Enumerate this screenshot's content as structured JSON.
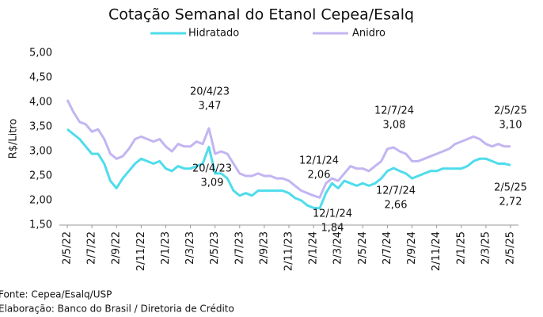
{
  "chart_data": {
    "type": "line",
    "title": "Cotação Semanal do Etanol Cepea/Esalq",
    "y_label": "R$/Litro",
    "categories": [
      "2/5/22",
      null,
      null,
      null,
      "2/7/22",
      null,
      null,
      null,
      "2/9/22",
      null,
      null,
      null,
      "2/11/22",
      null,
      null,
      null,
      "2/1/23",
      null,
      null,
      null,
      "2/3/23",
      null,
      null,
      null,
      "2/5/23",
      null,
      null,
      null,
      "2/7/23",
      null,
      null,
      null,
      "2/9/23",
      null,
      null,
      null,
      "2/11/23",
      null,
      null,
      null,
      "2/1/24",
      null,
      null,
      null,
      "2/3/24",
      null,
      null,
      null,
      "2/5/24",
      null,
      null,
      null,
      "2/7/24",
      null,
      null,
      null,
      "2/9/24",
      null,
      null,
      null,
      "2/11/24",
      null,
      null,
      null,
      "2/1/25",
      null,
      null,
      null,
      "2/3/25",
      null,
      null,
      null,
      "2/5/25"
    ],
    "series": [
      {
        "name": "Hidratado",
        "color": "#4fdcec",
        "values": [
          3.45,
          3.35,
          3.25,
          3.1,
          2.95,
          2.95,
          2.75,
          2.4,
          2.25,
          2.45,
          2.6,
          2.75,
          2.85,
          2.8,
          2.75,
          2.8,
          2.65,
          2.6,
          2.7,
          2.65,
          2.65,
          2.7,
          2.75,
          3.09,
          2.55,
          2.55,
          2.45,
          2.2,
          2.1,
          2.15,
          2.1,
          2.2,
          2.2,
          2.2,
          2.2,
          2.2,
          2.15,
          2.05,
          2.0,
          1.9,
          1.85,
          1.84,
          2.15,
          2.35,
          2.25,
          2.4,
          2.35,
          2.3,
          2.35,
          2.3,
          2.35,
          2.45,
          2.6,
          2.66,
          2.6,
          2.55,
          2.45,
          2.5,
          2.55,
          2.6,
          2.6,
          2.65,
          2.65,
          2.65,
          2.65,
          2.7,
          2.8,
          2.85,
          2.85,
          2.8,
          2.75,
          2.75,
          2.72
        ]
      },
      {
        "name": "Anidro",
        "color": "#c3b5f2",
        "values": [
          4.05,
          3.8,
          3.6,
          3.55,
          3.4,
          3.45,
          3.25,
          2.95,
          2.85,
          2.9,
          3.05,
          3.25,
          3.3,
          3.25,
          3.2,
          3.25,
          3.1,
          3.0,
          3.15,
          3.1,
          3.1,
          3.2,
          3.15,
          3.47,
          2.95,
          3.0,
          2.95,
          2.75,
          2.55,
          2.5,
          2.5,
          2.55,
          2.5,
          2.5,
          2.45,
          2.45,
          2.4,
          2.3,
          2.2,
          2.15,
          2.1,
          2.06,
          2.35,
          2.45,
          2.4,
          2.55,
          2.7,
          2.65,
          2.65,
          2.6,
          2.7,
          2.8,
          3.05,
          3.08,
          3.0,
          2.95,
          2.8,
          2.8,
          2.85,
          2.9,
          2.95,
          3.0,
          3.05,
          3.15,
          3.2,
          3.25,
          3.3,
          3.25,
          3.15,
          3.1,
          3.15,
          3.1,
          3.1
        ]
      }
    ],
    "ylim": [
      1.5,
      5.0
    ],
    "yticks": [
      {
        "value": 1.5,
        "label": "1,50"
      },
      {
        "value": 2.0,
        "label": "2,00"
      },
      {
        "value": 2.5,
        "label": "2,50"
      },
      {
        "value": 3.0,
        "label": "3,00"
      },
      {
        "value": 3.5,
        "label": "3,50"
      },
      {
        "value": 4.0,
        "label": "4,00"
      },
      {
        "value": 4.5,
        "label": "4,50"
      },
      {
        "value": 5.0,
        "label": "5,00"
      }
    ],
    "annotations": [
      {
        "date": "20/4/23",
        "label": "3,47"
      },
      {
        "date": "20/4/23",
        "label": "3,09"
      },
      {
        "date": "12/1/24",
        "label": "2,06"
      },
      {
        "date": "12/1/24",
        "label": "1,84"
      },
      {
        "date": "12/7/24",
        "label": "3,08"
      },
      {
        "date": "12/7/24",
        "label": "2,66"
      },
      {
        "date": "2/5/25",
        "label": "3,10"
      },
      {
        "date": "2/5/25",
        "label": "2,72"
      }
    ]
  },
  "footer": [
    "Fonte: Cepea/Esalq/USP",
    "Elaboração: Banco do Brasil / Diretoria de Crédito"
  ]
}
